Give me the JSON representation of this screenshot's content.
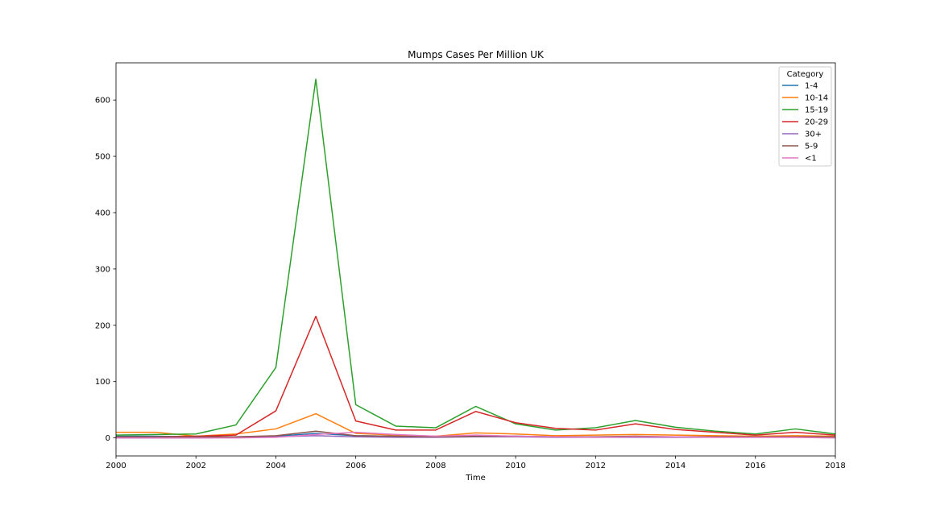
{
  "chart_data": {
    "type": "line",
    "title": "Mumps Cases Per Million UK",
    "xlabel": "Time",
    "ylabel": "",
    "xlim": [
      2000,
      2018
    ],
    "ylim": [
      -32,
      666
    ],
    "xticks": [
      "2000",
      "2002",
      "2004",
      "2006",
      "2008",
      "2010",
      "2012",
      "2014",
      "2016",
      "2018"
    ],
    "yticks": [
      "0",
      "100",
      "200",
      "300",
      "400",
      "500",
      "600"
    ],
    "legend": {
      "title": "Category",
      "placement": "top-right"
    },
    "grid": false,
    "x": [
      2000,
      2001,
      2002,
      2003,
      2004,
      2005,
      2006,
      2007,
      2008,
      2009,
      2010,
      2011,
      2012,
      2013,
      2014,
      2015,
      2016,
      2017,
      2018
    ],
    "series": [
      {
        "name": "1-4",
        "color": "#1f77b4",
        "values": [
          3,
          3,
          2,
          2,
          3,
          8,
          4,
          3,
          2,
          3,
          3,
          2,
          2,
          2,
          2,
          2,
          2,
          2,
          2
        ]
      },
      {
        "name": "10-14",
        "color": "#ff7f0e",
        "values": [
          10,
          10,
          3,
          7,
          16,
          43,
          8,
          5,
          3,
          9,
          7,
          4,
          5,
          6,
          5,
          4,
          3,
          4,
          3
        ]
      },
      {
        "name": "15-19",
        "color": "#2ca02c",
        "values": [
          5,
          6,
          7,
          23,
          125,
          637,
          59,
          21,
          18,
          56,
          25,
          14,
          18,
          31,
          19,
          12,
          7,
          16,
          7
        ]
      },
      {
        "name": "20-29",
        "color": "#d62728",
        "values": [
          2,
          2,
          3,
          5,
          48,
          216,
          30,
          14,
          14,
          47,
          27,
          17,
          14,
          25,
          15,
          10,
          5,
          10,
          5
        ]
      },
      {
        "name": "30+",
        "color": "#9467bd",
        "values": [
          0,
          0,
          0,
          1,
          2,
          4,
          2,
          1,
          1,
          2,
          2,
          1,
          1,
          1,
          1,
          1,
          1,
          1,
          1
        ]
      },
      {
        "name": "5-9",
        "color": "#8c564b",
        "values": [
          2,
          2,
          2,
          2,
          4,
          12,
          4,
          3,
          2,
          3,
          3,
          2,
          2,
          3,
          2,
          2,
          2,
          2,
          2
        ]
      },
      {
        "name": "<1",
        "color": "#e377c2",
        "values": [
          0,
          0,
          0,
          0,
          1,
          6,
          10,
          6,
          3,
          5,
          3,
          2,
          1,
          2,
          2,
          1,
          1,
          1,
          0
        ]
      }
    ]
  }
}
